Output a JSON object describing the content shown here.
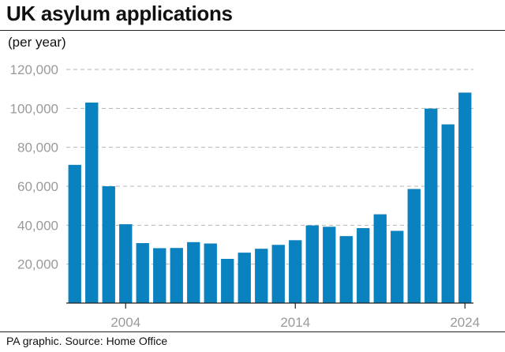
{
  "header": {
    "title": "UK asylum applications",
    "subtitle": "(per year)"
  },
  "footer": {
    "source": "PA graphic. Source: Home Office"
  },
  "colors": {
    "bar": "#0a82bf",
    "grid": "#b5b5b5",
    "axis": "#222222",
    "tick_text": "#9a9a9a"
  },
  "chart_data": {
    "type": "bar",
    "title": "UK asylum applications",
    "subtitle": "(per year)",
    "xlabel": "",
    "ylabel": "",
    "categories": [
      2001,
      2002,
      2003,
      2004,
      2005,
      2006,
      2007,
      2008,
      2009,
      2010,
      2011,
      2012,
      2013,
      2014,
      2015,
      2016,
      2017,
      2018,
      2019,
      2020,
      2021,
      2022,
      2023,
      2024
    ],
    "values": [
      71000,
      103000,
      60000,
      40500,
      30800,
      28200,
      28300,
      31300,
      30600,
      22700,
      25900,
      27900,
      29900,
      32300,
      39900,
      39200,
      34400,
      38500,
      45600,
      37100,
      58600,
      99900,
      91800,
      108100
    ],
    "ylim": [
      0,
      120000
    ],
    "yticks": [
      20000,
      40000,
      60000,
      80000,
      100000,
      120000
    ],
    "ytick_labels": [
      "20,000",
      "40,000",
      "60,000",
      "80,000",
      "100,000",
      "120,000"
    ],
    "xtick_labels": [
      {
        "year": 2004,
        "label": "2004"
      },
      {
        "year": 2014,
        "label": "2014"
      },
      {
        "year": 2024,
        "label": "2024"
      }
    ],
    "grid": "horizontal dashed"
  }
}
